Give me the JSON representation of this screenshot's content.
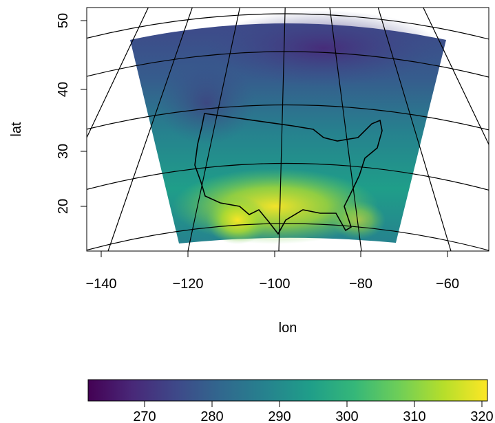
{
  "axes": {
    "x_label": "lon",
    "y_label": "lat",
    "x_ticks": [
      "−140",
      "−120",
      "−100",
      "−80",
      "−60"
    ],
    "y_ticks": [
      "20",
      "30",
      "40",
      "50"
    ]
  },
  "colorbar": {
    "palette": "viridis",
    "range": [
      262,
      321
    ],
    "ticks": [
      "270",
      "280",
      "290",
      "300",
      "310",
      "320"
    ],
    "colors": [
      "#440154",
      "#482878",
      "#3e4989",
      "#31688e",
      "#26828e",
      "#1f9e89",
      "#35b779",
      "#6ece58",
      "#b5de2b",
      "#fde725"
    ]
  },
  "chart_data": {
    "type": "heatmap",
    "projection": "conic (gridded field over North America)",
    "xlabel": "lon",
    "ylabel": "lat",
    "xlim": [
      -143,
      -50
    ],
    "ylim": [
      13,
      52
    ],
    "x_ticks": [
      -140,
      -120,
      -100,
      -80,
      -60
    ],
    "y_ticks": [
      20,
      30,
      40,
      50
    ],
    "color_scale": {
      "min": 262,
      "max": 321,
      "ticks": [
        270,
        280,
        290,
        300,
        310,
        320
      ],
      "palette": "viridis"
    },
    "grid": "graticule lines",
    "overlays": [
      "United States outline"
    ]
  }
}
